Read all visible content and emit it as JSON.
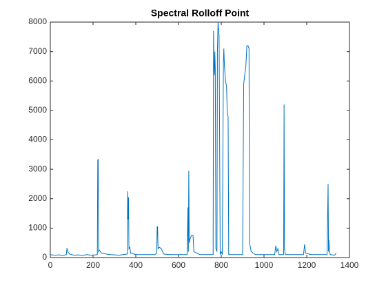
{
  "chart_data": {
    "type": "line",
    "title": "Spectral Rolloff Point",
    "x": [
      0,
      20,
      40,
      60,
      75,
      78,
      82,
      90,
      110,
      130,
      150,
      170,
      190,
      210,
      220,
      222,
      224,
      226,
      230,
      240,
      260,
      280,
      300,
      320,
      340,
      360,
      362,
      364,
      366,
      368,
      372,
      376,
      400,
      450,
      490,
      498,
      500,
      502,
      504,
      510,
      520,
      530,
      560,
      600,
      640,
      644,
      646,
      648,
      650,
      655,
      660,
      668,
      672,
      700,
      740,
      762,
      764,
      766,
      768,
      770,
      772,
      775,
      780,
      782,
      785,
      790,
      795,
      800,
      805,
      810,
      812,
      815,
      820,
      825,
      828,
      832,
      835,
      860,
      900,
      905,
      910,
      915,
      920,
      925,
      930,
      932,
      935,
      940,
      960,
      1000,
      1050,
      1055,
      1060,
      1065,
      1070,
      1092,
      1094,
      1096,
      1100,
      1150,
      1185,
      1190,
      1195,
      1220,
      1260,
      1295,
      1300,
      1302,
      1304,
      1306,
      1310,
      1330,
      1338
    ],
    "series": [
      {
        "color": "#0072bd",
        "values": [
          100,
          80,
          90,
          70,
          100,
          320,
          200,
          120,
          80,
          90,
          70,
          100,
          80,
          90,
          100,
          3300,
          3350,
          200,
          250,
          150,
          120,
          100,
          90,
          80,
          100,
          120,
          2250,
          1300,
          2050,
          300,
          350,
          150,
          100,
          100,
          100,
          150,
          1050,
          1050,
          300,
          350,
          300,
          120,
          100,
          100,
          100,
          1700,
          200,
          2950,
          500,
          650,
          750,
          750,
          200,
          100,
          100,
          100,
          7700,
          6500,
          6200,
          7000,
          6400,
          300,
          200,
          7000,
          8000,
          7500,
          100,
          200,
          100,
          6600,
          7100,
          6500,
          6000,
          5800,
          4900,
          4800,
          100,
          100,
          100,
          5900,
          6200,
          6500,
          7200,
          7200,
          7100,
          500,
          400,
          200,
          100,
          100,
          100,
          400,
          200,
          300,
          100,
          100,
          5200,
          300,
          100,
          100,
          100,
          450,
          150,
          100,
          100,
          100,
          2500,
          200,
          600,
          250,
          100,
          80,
          150
        ]
      }
    ],
    "xlim": [
      0,
      1400
    ],
    "xticks": [
      0,
      200,
      400,
      600,
      800,
      1000,
      1200,
      1400
    ],
    "ylim": [
      0,
      8000
    ],
    "yticks": [
      0,
      1000,
      2000,
      3000,
      4000,
      5000,
      6000,
      7000,
      8000
    ]
  }
}
